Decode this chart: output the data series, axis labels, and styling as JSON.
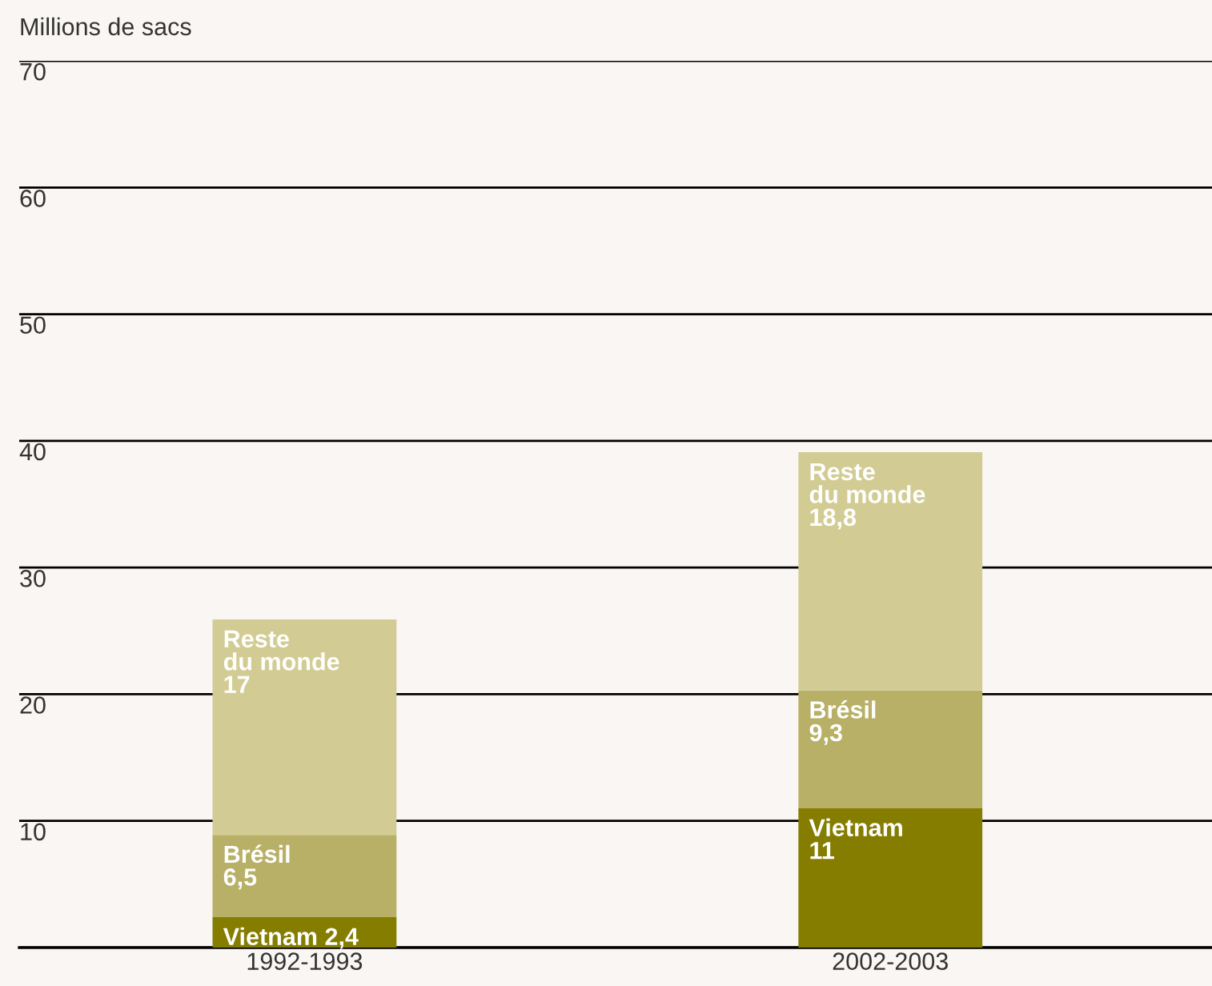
{
  "chart_data": {
    "type": "bar",
    "stacked": true,
    "ylabel": "Millions de sacs",
    "categories": [
      "1992-1993",
      "2002-2003"
    ],
    "series": [
      {
        "name": "Vietnam",
        "color": "#857d00",
        "values": [
          2.4,
          11
        ],
        "value_labels": [
          "2,4",
          "11"
        ]
      },
      {
        "name": "Brésil",
        "color": "#b8b066",
        "values": [
          6.5,
          9.3
        ],
        "value_labels": [
          "6,5",
          "9,3"
        ]
      },
      {
        "name": "Reste du monde",
        "color": "#d2cc94",
        "values": [
          17,
          18.8
        ],
        "value_labels": [
          "17",
          "18,8"
        ]
      }
    ],
    "ylim": [
      0,
      70
    ],
    "yticks": [
      {
        "value": 0,
        "label": null
      },
      10,
      20,
      30,
      40,
      50,
      60,
      70
    ],
    "grid": "y",
    "legend": false
  }
}
